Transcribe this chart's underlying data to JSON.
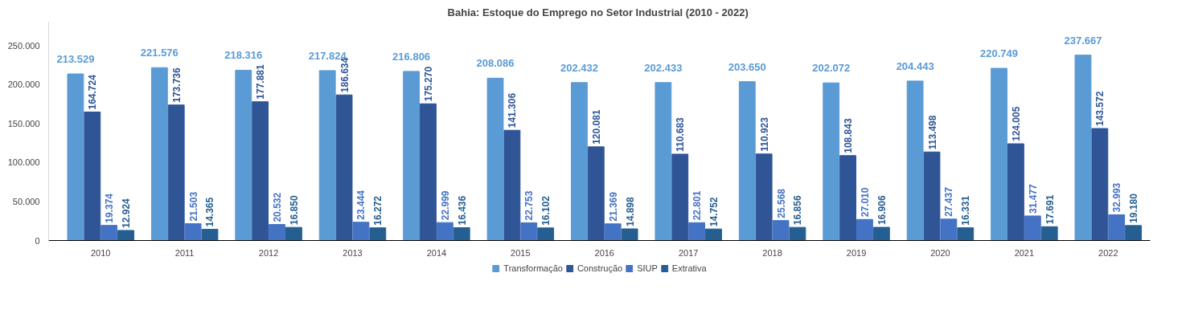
{
  "chart_data": {
    "type": "bar",
    "title": "Bahia: Estoque do Emprego no Setor Industrial (2010  - 2022)",
    "categories": [
      "2010",
      "2011",
      "2012",
      "2013",
      "2014",
      "2015",
      "2016",
      "2017",
      "2018",
      "2019",
      "2020",
      "2021",
      "2022"
    ],
    "series": [
      {
        "name": "Transformação",
        "color": "#5b9bd5",
        "values": [
          213529,
          221576,
          218316,
          217824,
          216806,
          208086,
          202432,
          202433,
          203650,
          202072,
          204443,
          220749,
          237667
        ],
        "value_labels": [
          "213.529",
          "221.576",
          "218.316",
          "217.824",
          "216.806",
          "208.086",
          "202.432",
          "202.433",
          "203.650",
          "202.072",
          "204.443",
          "220.749",
          "237.667"
        ]
      },
      {
        "name": "Construção",
        "color": "#2f5597",
        "values": [
          164724,
          173736,
          177881,
          186634,
          175270,
          141306,
          120081,
          110683,
          110923,
          108843,
          113498,
          124005,
          143572
        ],
        "value_labels": [
          "164.724",
          "173.736",
          "177.881",
          "186.634",
          "175.270",
          "141.306",
          "120.081",
          "110.683",
          "110.923",
          "108.843",
          "113.498",
          "124.005",
          "143.572"
        ]
      },
      {
        "name": "SIUP",
        "color": "#4472c4",
        "values": [
          19374,
          21503,
          20532,
          23444,
          22999,
          22753,
          21369,
          22801,
          25568,
          27010,
          27437,
          31477,
          32993
        ],
        "value_labels": [
          "19.374",
          "21.503",
          "20.532",
          "23.444",
          "22.999",
          "22.753",
          "21.369",
          "22.801",
          "25.568",
          "27.010",
          "27.437",
          "31.477",
          "32.993"
        ]
      },
      {
        "name": "Extrativa",
        "color": "#255e91",
        "values": [
          12924,
          14365,
          16850,
          16272,
          16436,
          16102,
          14898,
          14752,
          16856,
          16906,
          16331,
          17691,
          19180
        ],
        "value_labels": [
          "12.924",
          "14.365",
          "16.850",
          "16.272",
          "16.436",
          "16.102",
          "14.898",
          "14.752",
          "16.856",
          "16.906",
          "16.331",
          "17.691",
          "19.180"
        ]
      }
    ],
    "ylim": [
      0,
      280000
    ],
    "yticks": [
      {
        "value": 0,
        "label": "0"
      },
      {
        "value": 50000,
        "label": "50.000"
      },
      {
        "value": 100000,
        "label": "100.000"
      },
      {
        "value": 150000,
        "label": "150.000"
      },
      {
        "value": 200000,
        "label": "200.000"
      },
      {
        "value": 250000,
        "label": "250.000"
      }
    ],
    "legend": "bottom"
  }
}
